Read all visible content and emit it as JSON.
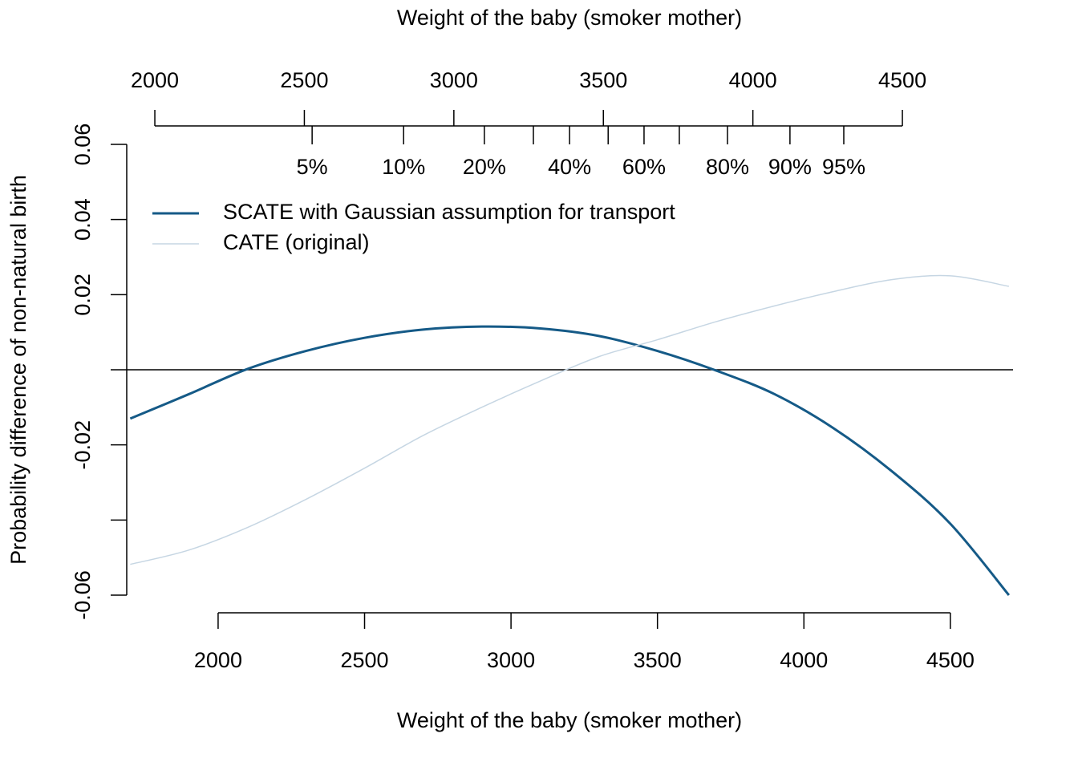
{
  "chart_data": {
    "type": "line",
    "x2label": "Weight of the baby (smoker mother)",
    "xlabel": "Weight of the baby (smoker mother)",
    "ylabel": "Probability difference of non-natural birth",
    "x": [
      1700,
      1900,
      2100,
      2300,
      2500,
      2700,
      2900,
      3100,
      3300,
      3500,
      3700,
      3900,
      4100,
      4300,
      4500,
      4700
    ],
    "series": [
      {
        "name": "SCATE with Gaussian assumption for transport",
        "color": "#155a87",
        "width": 3,
        "values": [
          -0.013,
          -0.0065,
          0.0002,
          0.005,
          0.0085,
          0.0107,
          0.0115,
          0.011,
          0.009,
          0.005,
          -0.0002,
          -0.0065,
          -0.0155,
          -0.027,
          -0.041,
          -0.06
        ]
      },
      {
        "name": "CATE (original)",
        "color": "#c6d6e3",
        "width": 1.5,
        "values": [
          -0.0518,
          -0.048,
          -0.042,
          -0.0345,
          -0.0262,
          -0.0175,
          -0.01,
          -0.003,
          0.0035,
          0.008,
          0.0128,
          0.017,
          0.0208,
          0.024,
          0.025,
          0.0222
        ]
      }
    ],
    "xlim": [
      1688,
      4714
    ],
    "xticks": [
      2000,
      2500,
      3000,
      3500,
      4000,
      4500
    ],
    "x2lim": [
      1906,
      4870
    ],
    "x2ticks": [
      2000,
      2500,
      3000,
      3500,
      4000,
      4500
    ],
    "quantile_ticks": [
      {
        "value": 2526,
        "label": "5%"
      },
      {
        "value": 2832,
        "label": "10%"
      },
      {
        "value": 3102,
        "label": "20%"
      },
      {
        "value": 3266,
        "label": null
      },
      {
        "value": 3387,
        "label": "40%"
      },
      {
        "value": 3516,
        "label": null
      },
      {
        "value": 3636,
        "label": "60%"
      },
      {
        "value": 3754,
        "label": null
      },
      {
        "value": 3915,
        "label": "80%"
      },
      {
        "value": 4124,
        "label": "90%"
      },
      {
        "value": 4304,
        "label": "95%"
      }
    ],
    "ylim": [
      -0.06,
      0.06
    ],
    "yticks": [
      -0.06,
      {
        "value": -0.04,
        "label": null
      },
      -0.02,
      {
        "value": 0,
        "label": null
      },
      0.02,
      0.04,
      0.06
    ],
    "hline": 0,
    "legend": "top-left"
  }
}
